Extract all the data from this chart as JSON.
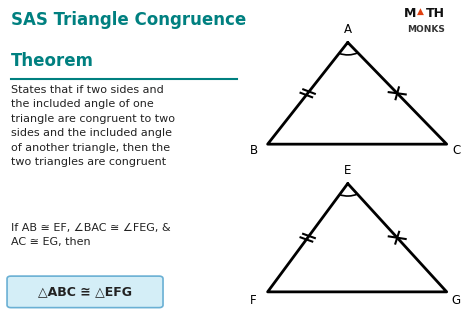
{
  "title_line1": "SAS Triangle Congruence",
  "title_line2": "Theorem",
  "title_color": "#008080",
  "body_text": "States that if two sides and\nthe included angle of one\ntriangle are congruent to two\nsides and the included angle\nof another triangle, then the\ntwo triangles are congruent",
  "condition_text": "If AB ≅ EF, ∠BAC ≅ ∠FEG, &\nAC ≅ EG, then",
  "conclusion_text": "△ABC ≅ △EFG",
  "conclusion_box_color": "#d4eef7",
  "conclusion_box_border": "#6ab0d4",
  "text_color": "#222222",
  "bg_color": "#ffffff",
  "tri1": {
    "A": [
      0.735,
      0.875
    ],
    "B": [
      0.565,
      0.565
    ],
    "C": [
      0.945,
      0.565
    ],
    "labels": {
      "A": [
        0.735,
        0.915
      ],
      "B": [
        0.535,
        0.545
      ],
      "C": [
        0.965,
        0.545
      ]
    }
  },
  "tri2": {
    "E": [
      0.735,
      0.445
    ],
    "F": [
      0.565,
      0.115
    ],
    "G": [
      0.945,
      0.115
    ],
    "labels": {
      "E": [
        0.735,
        0.485
      ],
      "F": [
        0.535,
        0.09
      ],
      "G": [
        0.965,
        0.09
      ]
    }
  }
}
